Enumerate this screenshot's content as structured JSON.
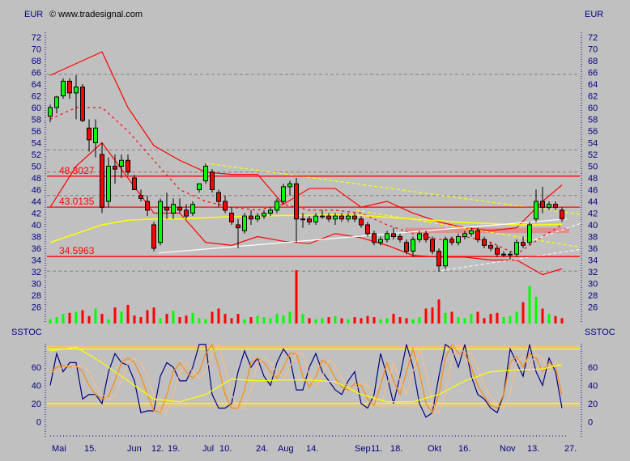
{
  "header": {
    "currency_left": "EUR",
    "currency_right": "EUR",
    "copyright": "© www.tradesignal.com",
    "indicator_left": "SSTOC",
    "indicator_right": "SSTOC"
  },
  "chart_data": [
    {
      "type": "candlestick",
      "ylabel": "EUR",
      "ylim": [
        24,
        74
      ],
      "yticks": [
        26,
        28,
        30,
        32,
        34,
        36,
        38,
        40,
        42,
        44,
        46,
        48,
        50,
        52,
        54,
        56,
        58,
        60,
        62,
        64,
        66,
        68,
        70,
        72
      ],
      "x_tick_labels": [
        "Mai",
        "15.",
        "Jun",
        "12.",
        "19.",
        "Jul",
        "10.",
        "24.",
        "Aug",
        "14.",
        "Sep",
        "11.",
        "18.",
        "Okt",
        "16.",
        "Nov",
        "13.",
        "27."
      ],
      "ohlc": [
        [
          58.5,
          60.5,
          57.5,
          60
        ],
        [
          60,
          62,
          59,
          61.8
        ],
        [
          62,
          65,
          61.5,
          64.5
        ],
        [
          64.5,
          65,
          61.5,
          62.5
        ],
        [
          62.5,
          65.5,
          58,
          63.5
        ],
        [
          63.5,
          64,
          57.5,
          57.8
        ],
        [
          56.5,
          58,
          52.5,
          54.5
        ],
        [
          54,
          58,
          51.5,
          56.5
        ],
        [
          52,
          54,
          42,
          43
        ],
        [
          44,
          51.5,
          43,
          50
        ],
        [
          50,
          52,
          47,
          49.5
        ],
        [
          50,
          52,
          48,
          51
        ],
        [
          51,
          52,
          48.5,
          49
        ],
        [
          48,
          48.5,
          46,
          46
        ],
        [
          45,
          46,
          44,
          44.5
        ],
        [
          44,
          45,
          41.5,
          42.5
        ],
        [
          40,
          40.5,
          35.5,
          36
        ],
        [
          37,
          44.5,
          36.5,
          44
        ],
        [
          43,
          45.5,
          41,
          42.5
        ],
        [
          42,
          44.5,
          41,
          43.5
        ],
        [
          43,
          44.5,
          42,
          42.5
        ],
        [
          42.5,
          43.5,
          41,
          41.5
        ],
        [
          42,
          44,
          41.5,
          43.5
        ],
        [
          46,
          47,
          45.5,
          47
        ],
        [
          47.5,
          50.5,
          47,
          50
        ],
        [
          49,
          49.5,
          45.5,
          46
        ],
        [
          45.5,
          46,
          43,
          44
        ],
        [
          44,
          45,
          42,
          42.5
        ],
        [
          42,
          43,
          40,
          40.5
        ],
        [
          40,
          41,
          36,
          39.5
        ],
        [
          39,
          42,
          38.5,
          41.5
        ],
        [
          41.5,
          42.5,
          40,
          41
        ],
        [
          41,
          42,
          40.5,
          41.5
        ],
        [
          41.5,
          42.5,
          41,
          42
        ],
        [
          42,
          43,
          41.5,
          42.5
        ],
        [
          42.5,
          44.5,
          42,
          44
        ],
        [
          44,
          47,
          43.5,
          46.5
        ],
        [
          46.5,
          47.5,
          45,
          47
        ],
        [
          47,
          48,
          37,
          41
        ],
        [
          41,
          42,
          39.5,
          41
        ],
        [
          41,
          41.5,
          40,
          40.5
        ],
        [
          40.5,
          42,
          40,
          41.5
        ],
        [
          41.5,
          42.5,
          41,
          41.5
        ],
        [
          41.5,
          42,
          40.5,
          41
        ],
        [
          41,
          42,
          40,
          41.5
        ],
        [
          41.5,
          42,
          40.5,
          41
        ],
        [
          41,
          42,
          40.5,
          41.5
        ],
        [
          41.5,
          42,
          40.5,
          41
        ],
        [
          41,
          41.5,
          39.5,
          40
        ],
        [
          40,
          40.5,
          38,
          38.5
        ],
        [
          38.5,
          39,
          36.5,
          37
        ],
        [
          37,
          38,
          36.5,
          37.5
        ],
        [
          37.5,
          39,
          37,
          38.5
        ],
        [
          38.5,
          39.5,
          37.5,
          38
        ],
        [
          38,
          38.5,
          37,
          37.5
        ],
        [
          37,
          37.5,
          35,
          35.5
        ],
        [
          35.5,
          38,
          34.5,
          37.5
        ],
        [
          37.5,
          39,
          37,
          38.5
        ],
        [
          38.5,
          39,
          37,
          37.5
        ],
        [
          37.5,
          38,
          35,
          35.5
        ],
        [
          35.5,
          36,
          32,
          33
        ],
        [
          33,
          38,
          32.5,
          37.5
        ],
        [
          37.5,
          38,
          36.5,
          37
        ],
        [
          37,
          38.5,
          36.5,
          38
        ],
        [
          38,
          39,
          37.5,
          38.5
        ],
        [
          38.5,
          39.5,
          38,
          39
        ],
        [
          39,
          39.5,
          37,
          37.5
        ],
        [
          37.5,
          38,
          36,
          36.5
        ],
        [
          36.5,
          37,
          35.5,
          36
        ],
        [
          36,
          36.5,
          34.5,
          35
        ],
        [
          35,
          35.5,
          34.5,
          35
        ],
        [
          35,
          35.5,
          34,
          35
        ],
        [
          35,
          37.5,
          34.5,
          37
        ],
        [
          37,
          38,
          36,
          36.5
        ],
        [
          37,
          40.5,
          36.5,
          40
        ],
        [
          41,
          46,
          40.5,
          44
        ],
        [
          44,
          46.5,
          42,
          43
        ],
        [
          43,
          44,
          42.5,
          43.5
        ],
        [
          43.5,
          44,
          42.5,
          43
        ],
        [
          42.5,
          43,
          40.5,
          41
        ]
      ],
      "volume_relative": [
        8,
        12,
        18,
        20,
        22,
        25,
        14,
        28,
        18,
        8,
        30,
        22,
        35,
        15,
        12,
        25,
        30,
        10,
        18,
        24,
        12,
        15,
        20,
        10,
        8,
        22,
        28,
        18,
        10,
        18,
        8,
        12,
        14,
        12,
        10,
        18,
        15,
        22,
        100,
        18,
        10,
        8,
        10,
        12,
        14,
        10,
        8,
        12,
        10,
        14,
        12,
        8,
        10,
        18,
        12,
        10,
        8,
        12,
        28,
        30,
        45,
        20,
        22,
        12,
        10,
        18,
        22,
        10,
        18,
        20,
        12,
        14,
        22,
        40,
        70,
        50,
        28,
        18,
        14,
        10
      ],
      "horizontal_levels": [
        {
          "label": "48.3027",
          "value": 48.3027
        },
        {
          "label": "43.0135",
          "value": 43.0135
        },
        {
          "label": "34.5963",
          "value": 34.5963
        }
      ],
      "dashed_gray_levels": [
        65.66,
        52.8,
        49.0,
        45.0,
        32.1
      ],
      "bollinger_upper": [
        65.5,
        67.5,
        69.5,
        60,
        53.5,
        51,
        49,
        48.6,
        48.6,
        43.5,
        46.2,
        46.2,
        43,
        44,
        42,
        40.5,
        39.5,
        39,
        39.5,
        44,
        46.8
      ],
      "bollinger_middle": [
        58,
        60,
        60,
        56,
        51,
        46,
        44,
        43,
        42.5,
        43.5,
        42.5,
        42.5,
        42,
        40,
        38.5,
        37.5,
        38,
        37,
        35,
        38,
        40
      ],
      "bollinger_lower": [
        43,
        50,
        54,
        48,
        42,
        42,
        37,
        36.5,
        38,
        37.2,
        36.8,
        38.5,
        37.8,
        36.5,
        34.8,
        34.5,
        34.5,
        34,
        34,
        31.5,
        32.5
      ],
      "moving_average_yellow": [
        37,
        38.5,
        40,
        40.8,
        41,
        41,
        41.2,
        41.4,
        41.5,
        41.6,
        41.6,
        41.7,
        41.6,
        41.3,
        41,
        40.7,
        40.4,
        40.2,
        40,
        40,
        40.1
      ],
      "shaded_zone": [
        38.6,
        39.5
      ],
      "colors": {
        "up": "#00ff00",
        "down": "#ff0000",
        "bands": "#ff0000",
        "average": "#ffff00",
        "trend": "#ffffff",
        "zone": "#e88080"
      }
    },
    {
      "type": "line",
      "ylabel": "SSTOC",
      "ylim": [
        -10,
        95
      ],
      "yticks": [
        0,
        20,
        40,
        60
      ],
      "levels": [
        20,
        80
      ],
      "series": [
        {
          "color": "#000080",
          "values": [
            40,
            75,
            55,
            65,
            65,
            25,
            30,
            30,
            20,
            55,
            75,
            65,
            62,
            45,
            10,
            12,
            12,
            50,
            65,
            60,
            45,
            45,
            60,
            85,
            85,
            30,
            15,
            15,
            20,
            55,
            78,
            60,
            70,
            50,
            40,
            65,
            80,
            70,
            35,
            35,
            60,
            75,
            55,
            45,
            35,
            30,
            45,
            55,
            20,
            15,
            30,
            75,
            50,
            20,
            50,
            85,
            60,
            20,
            5,
            10,
            50,
            85,
            80,
            60,
            85,
            50,
            30,
            25,
            15,
            10,
            30,
            80,
            65,
            50,
            85,
            55,
            40,
            70,
            55,
            15
          ]
        },
        {
          "color": "#ff8c00",
          "values": [
            55,
            60,
            62,
            60,
            62,
            55,
            40,
            30,
            25,
            28,
            45,
            65,
            70,
            65,
            50,
            30,
            12,
            10,
            30,
            55,
            65,
            55,
            48,
            55,
            75,
            85,
            60,
            30,
            15,
            15,
            35,
            65,
            70,
            65,
            55,
            48,
            60,
            75,
            75,
            50,
            38,
            50,
            68,
            62,
            48,
            38,
            35,
            42,
            40,
            25,
            18,
            40,
            65,
            45,
            30,
            55,
            80,
            55,
            20,
            10,
            30,
            70,
            85,
            75,
            75,
            60,
            40,
            28,
            18,
            15,
            30,
            65,
            72,
            60,
            75,
            70,
            55,
            65,
            60,
            30
          ]
        },
        {
          "color": "#ffff00",
          "values": [
            78,
            82,
            65,
            45,
            25,
            22,
            30,
            47,
            45,
            46,
            46,
            44,
            30,
            22,
            22,
            30,
            45,
            55,
            57,
            58,
            63
          ]
        }
      ]
    }
  ]
}
